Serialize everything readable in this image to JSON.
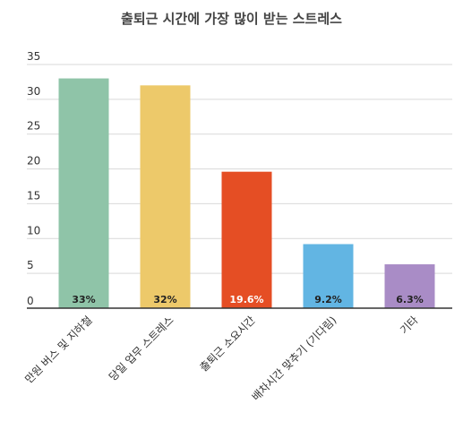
{
  "chart_data": {
    "type": "bar",
    "title": "출퇴근 시간에 가장 많이 받는 스트레스",
    "categories": [
      "만원 버스 및 지하철",
      "당일 업무 스트레스",
      "출퇴근 소요시간",
      "배차시간 맞추기 (기다림)",
      "기타"
    ],
    "values": [
      33,
      32,
      19.6,
      9.2,
      6.3
    ],
    "data_labels": [
      "33%",
      "32%",
      "19.6%",
      "9.2%",
      "6.3%"
    ],
    "colors": [
      "#8fc4a8",
      "#edc96a",
      "#e54e24",
      "#62b5e3",
      "#a98cc6"
    ],
    "label_colors": [
      "#222222",
      "#222222",
      "#ffffff",
      "#222222",
      "#222222"
    ],
    "ylim": [
      0,
      35
    ],
    "yticks": [
      "0",
      "5",
      "10",
      "15",
      "20",
      "25",
      "30",
      "35"
    ],
    "grid": true,
    "legend": "none"
  }
}
